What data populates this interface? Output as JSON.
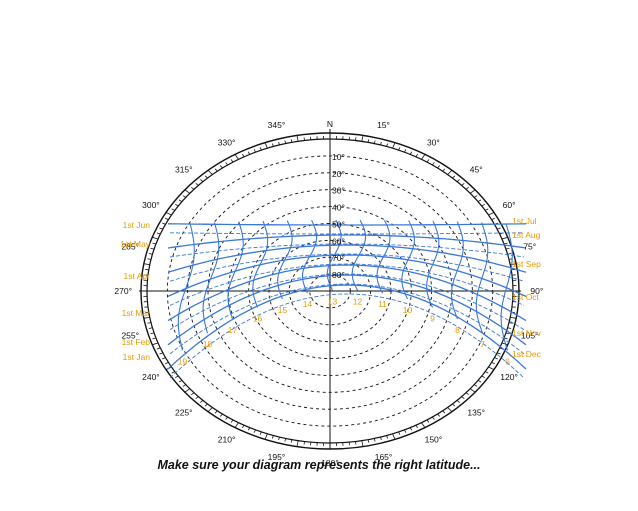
{
  "diagram": {
    "north_label": "N",
    "azimuth_labels": [
      {
        "deg": 15,
        "text": "15°"
      },
      {
        "deg": 30,
        "text": "30°"
      },
      {
        "deg": 45,
        "text": "45°"
      },
      {
        "deg": 60,
        "text": "60°"
      },
      {
        "deg": 75,
        "text": "75°"
      },
      {
        "deg": 90,
        "text": "90°"
      },
      {
        "deg": 105,
        "text": "105°"
      },
      {
        "deg": 120,
        "text": "120°"
      },
      {
        "deg": 135,
        "text": "135°"
      },
      {
        "deg": 150,
        "text": "150°"
      },
      {
        "deg": 165,
        "text": "165°"
      },
      {
        "deg": 180,
        "text": "180°"
      },
      {
        "deg": 195,
        "text": "195°"
      },
      {
        "deg": 210,
        "text": "210°"
      },
      {
        "deg": 225,
        "text": "225°"
      },
      {
        "deg": 240,
        "text": "240°"
      },
      {
        "deg": 255,
        "text": "255°"
      },
      {
        "deg": 270,
        "text": "270°"
      },
      {
        "deg": 285,
        "text": "285°"
      },
      {
        "deg": 300,
        "text": "300°"
      },
      {
        "deg": 315,
        "text": "315°"
      },
      {
        "deg": 330,
        "text": "330°"
      },
      {
        "deg": 345,
        "text": "345°"
      }
    ],
    "altitude_labels": [
      "10°",
      "20°",
      "30°",
      "40°",
      "50°",
      "60°",
      "70°",
      "80°"
    ],
    "altitude_values": [
      10,
      20,
      30,
      40,
      50,
      60,
      70,
      80
    ],
    "date_labels_left": [
      "1st Jun",
      "1st May",
      "1st Apr",
      "1st Mar",
      "1st Feb",
      "1st Jan"
    ],
    "date_labels_right": [
      "1st Jul",
      "1st Aug",
      "1st Sep",
      "1st Oct",
      "1st Nov",
      "1st Dec"
    ],
    "hour_labels": [
      "19",
      "18",
      "17",
      "16",
      "15",
      "14",
      "13",
      "12",
      "11",
      "10",
      "9",
      "8",
      "7",
      "6"
    ],
    "colors": {
      "path_line": "#3a78d8",
      "date_text": "#e69a00",
      "hour_text": "#e69a00",
      "grid_dash": "#111111",
      "frame": "#111111"
    }
  },
  "caption": "Make sure your diagram represents the right latitude..."
}
